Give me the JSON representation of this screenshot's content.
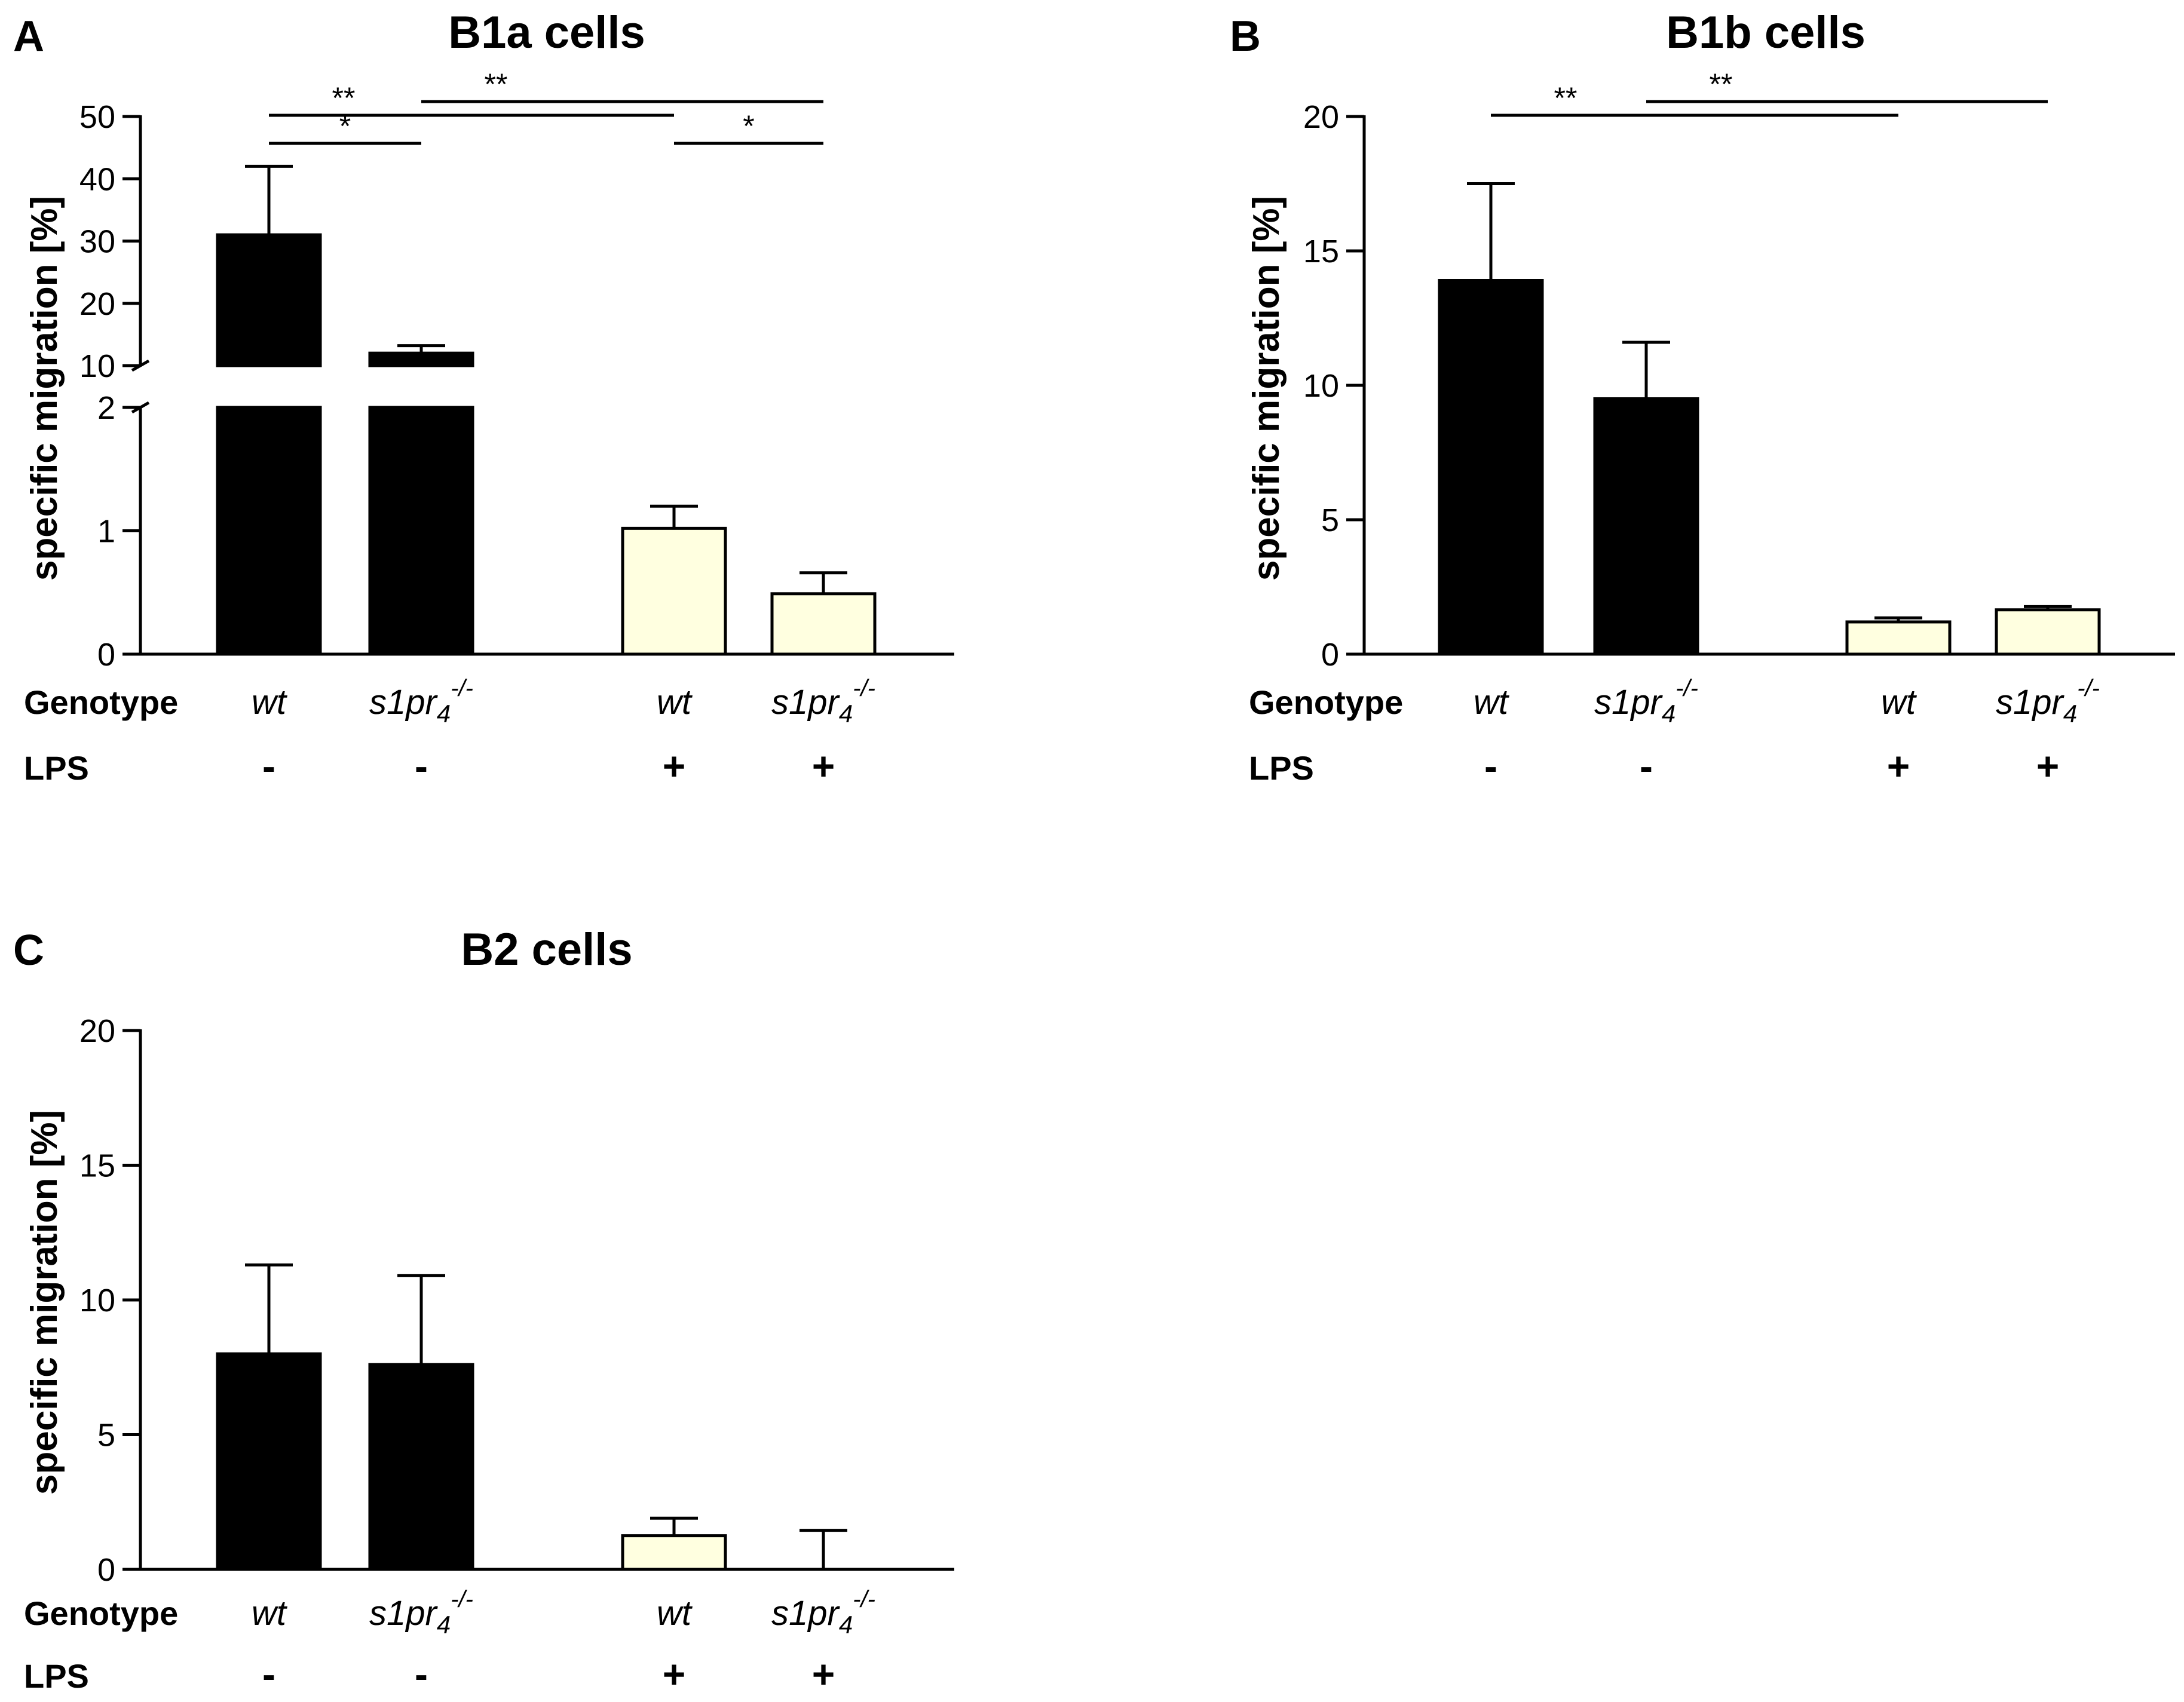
{
  "chart_data": [
    {
      "type": "bar",
      "panel": "A",
      "title": "B1a cells",
      "ylabel": "specific migration [%]",
      "yaxis_break": true,
      "ylim_lower": [
        0,
        2
      ],
      "ylim_upper": [
        10,
        50
      ],
      "yticks_lower": [
        "0",
        "1",
        "2"
      ],
      "yticks_upper": [
        "10",
        "20",
        "30",
        "40",
        "50"
      ],
      "row_labels": [
        "Genotype",
        "LPS"
      ],
      "groups": [
        {
          "genotype": "wt",
          "genotype_sup": "",
          "genotype_sub": "",
          "lps": "-",
          "value": 31,
          "error": 11,
          "color": "#000000"
        },
        {
          "genotype": "s1pr",
          "genotype_sub": "4",
          "genotype_sup": "-/-",
          "lps": "-",
          "value": 12,
          "error": 1.2,
          "color": "#000000"
        },
        {
          "genotype": "wt",
          "genotype_sup": "",
          "genotype_sub": "",
          "lps": "+",
          "value": 1.02,
          "error": 0.18,
          "color": "#FFFFE0"
        },
        {
          "genotype": "s1pr",
          "genotype_sub": "4",
          "genotype_sup": "-/-",
          "lps": "+",
          "value": 0.49,
          "error": 0.17,
          "color": "#FFFFE0"
        }
      ],
      "significance": [
        {
          "from": 0,
          "to": 2,
          "label": "**"
        },
        {
          "from": 1,
          "to": 3,
          "label": "**"
        },
        {
          "from": 0,
          "to": 1,
          "label": "*"
        },
        {
          "from": 2,
          "to": 3,
          "label": "*"
        }
      ]
    },
    {
      "type": "bar",
      "panel": "B",
      "title": "B1b cells",
      "ylabel": "specific migration [%]",
      "ylim": [
        0,
        20
      ],
      "yticks": [
        "0",
        "5",
        "10",
        "15",
        "20"
      ],
      "row_labels": [
        "Genotype",
        "LPS"
      ],
      "groups": [
        {
          "genotype": "wt",
          "genotype_sup": "",
          "genotype_sub": "",
          "lps": "-",
          "value": 13.9,
          "error": 3.6,
          "color": "#000000"
        },
        {
          "genotype": "s1pr",
          "genotype_sub": "4",
          "genotype_sup": "-/-",
          "lps": "-",
          "value": 9.5,
          "error": 2.1,
          "color": "#000000"
        },
        {
          "genotype": "wt",
          "genotype_sup": "",
          "genotype_sub": "",
          "lps": "+",
          "value": 1.2,
          "error": 0.15,
          "color": "#FFFFE0"
        },
        {
          "genotype": "s1pr",
          "genotype_sub": "4",
          "genotype_sup": "-/-",
          "lps": "+",
          "value": 1.65,
          "error": 0.12,
          "color": "#FFFFE0"
        }
      ],
      "significance": [
        {
          "from": 0,
          "to": 2,
          "label": "**"
        },
        {
          "from": 1,
          "to": 3,
          "label": "**"
        }
      ]
    },
    {
      "type": "bar",
      "panel": "C",
      "title": "B2 cells",
      "ylabel": "specific migration [%]",
      "ylim": [
        0,
        20
      ],
      "yticks": [
        "0",
        "5",
        "10",
        "15",
        "20"
      ],
      "row_labels": [
        "Genotype",
        "LPS"
      ],
      "groups": [
        {
          "genotype": "wt",
          "genotype_sup": "",
          "genotype_sub": "",
          "lps": "-",
          "value": 8.0,
          "error": 3.3,
          "color": "#000000"
        },
        {
          "genotype": "s1pr",
          "genotype_sub": "4",
          "genotype_sup": "-/-",
          "lps": "-",
          "value": 7.6,
          "error": 3.3,
          "color": "#000000"
        },
        {
          "genotype": "wt",
          "genotype_sup": "",
          "genotype_sub": "",
          "lps": "+",
          "value": 1.25,
          "error": 0.65,
          "color": "#FFFFE0"
        },
        {
          "genotype": "s1pr",
          "genotype_sub": "4",
          "genotype_sup": "-/-",
          "lps": "+",
          "value": 0,
          "error": 1.45,
          "color": "#FFFFE0"
        }
      ],
      "significance": []
    }
  ]
}
